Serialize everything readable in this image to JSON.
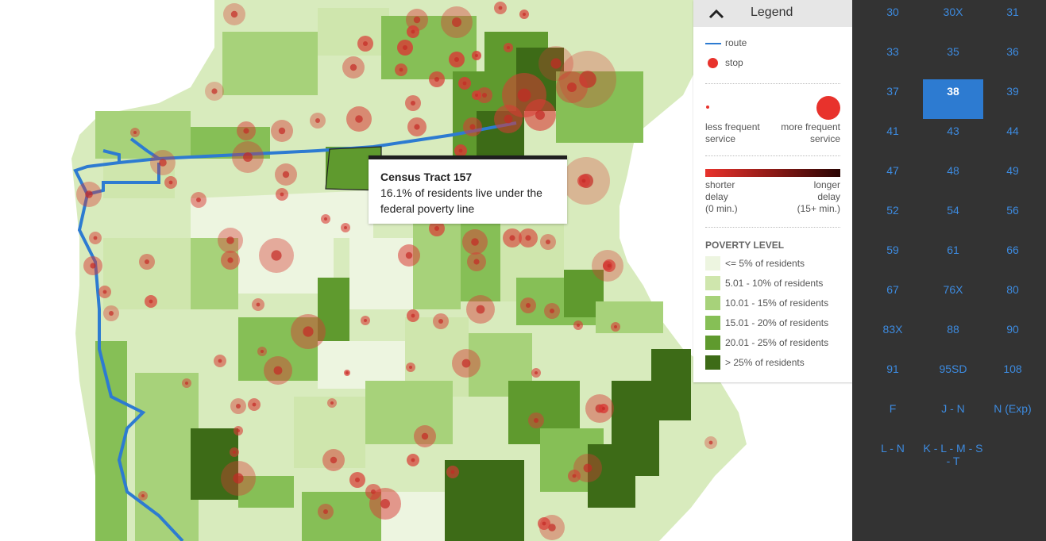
{
  "tooltip": {
    "title": "Census Tract 157",
    "text": "16.1% of residents live under the federal poverty line"
  },
  "legend": {
    "title": "Legend",
    "route_label": "route",
    "stop_label": "stop",
    "less_frequent": "less frequent",
    "less_frequent_2": "service",
    "more_frequent": "more frequent",
    "more_frequent_2": "service",
    "shorter_delay_1": "shorter",
    "shorter_delay_2": "delay",
    "shorter_delay_3": "(0 min.)",
    "longer_delay_1": "longer",
    "longer_delay_2": "delay",
    "longer_delay_3": "(15+ min.)",
    "poverty_title": "POVERTY LEVEL",
    "poverty_levels": [
      {
        "label": "<= 5% of residents",
        "color": "#edf5e0"
      },
      {
        "label": "5.01 - 10% of residents",
        "color": "#cfe6ad"
      },
      {
        "label": "10.01 - 15% of residents",
        "color": "#a7d27a"
      },
      {
        "label": "15.01 - 20% of residents",
        "color": "#86bf56"
      },
      {
        "label": "20.01 - 25% of residents",
        "color": "#5f9a2e"
      },
      {
        "label": "> 25% of residents",
        "color": "#3d6b17"
      }
    ]
  },
  "routes": {
    "items": [
      "30",
      "30X",
      "31",
      "33",
      "35",
      "36",
      "37",
      "38",
      "39",
      "41",
      "43",
      "44",
      "47",
      "48",
      "49",
      "52",
      "54",
      "56",
      "59",
      "61",
      "66",
      "67",
      "76X",
      "80",
      "83X",
      "88",
      "90",
      "91",
      "95SD",
      "108",
      "F",
      "J - N",
      "N (Exp)",
      "L - N",
      "K - L - M - S - T"
    ],
    "selected": "38"
  },
  "colors": {
    "route": "#2d7bd1",
    "stop": "#e8322c",
    "panel_bg": "#333333",
    "route_text": "#3d8be0"
  }
}
